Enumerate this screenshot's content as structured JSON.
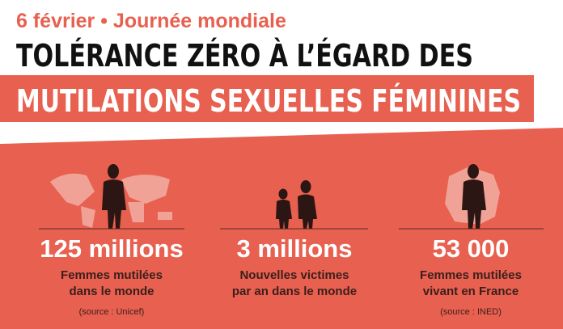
{
  "header": {
    "kicker": "6 février • Journée mondiale",
    "title_line1": "TOLÉRANCE ZÉRO À L’ÉGARD DES",
    "title_line2": "MUTILATIONS SEXUELLES FÉMININES"
  },
  "stats": [
    {
      "value": "125 millions",
      "description": [
        "Femmes mutilées",
        "dans le monde"
      ],
      "source": "(source : Unicef)"
    },
    {
      "value": "3 millions",
      "description": [
        "Nouvelles victimes",
        "par an dans le monde"
      ]
    },
    {
      "value": "53 000",
      "description": [
        "Femmes mutilées",
        "vivant en France"
      ],
      "source": "(source : INED)"
    }
  ]
}
